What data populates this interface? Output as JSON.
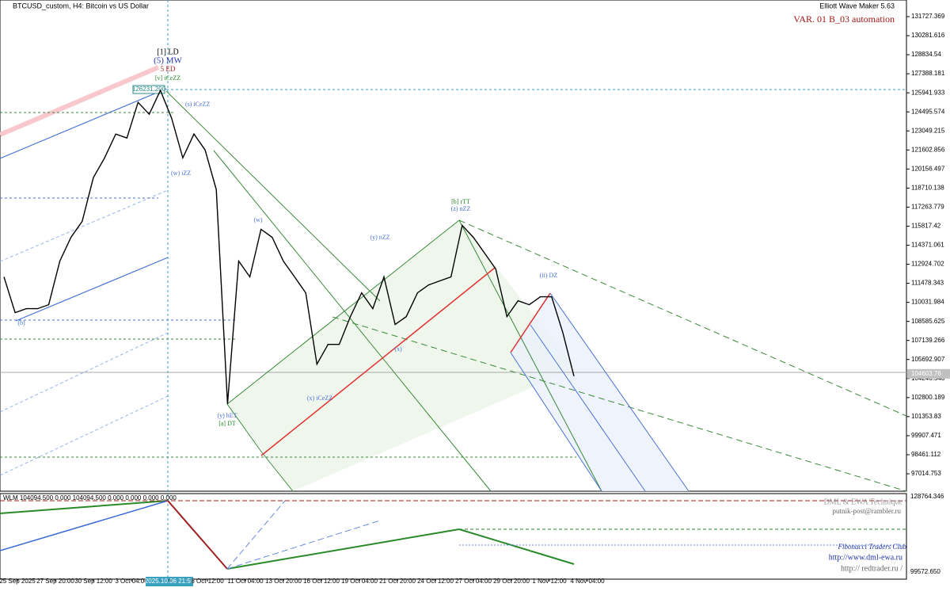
{
  "header": {
    "symbol": "BTCUSD_custom, H4:  Bitcoin vs US Dollar",
    "tool": "Elliott Wave Maker 5.63",
    "variant": "VAR. 01 B_03 automation"
  },
  "price_axis": {
    "ticks": [
      131727.369,
      130281.616,
      128834.54,
      127388.181,
      125941.933,
      124495.574,
      123049.215,
      121602.856,
      120156.497,
      118710.138,
      117263.779,
      115817.42,
      114371.061,
      112924.702,
      111478.343,
      110031.984,
      108585.625,
      107139.266,
      105692.907,
      104246.548,
      102800.189,
      101353.83,
      99907.471,
      98461.112,
      97014.753
    ],
    "current": 104603.76
  },
  "price": {
    "values": [
      111962,
      109250,
      109551,
      109551,
      109853,
      113167,
      114975,
      116181,
      119496,
      121002,
      122811,
      122509,
      125221,
      124317,
      126125,
      124016,
      121002,
      122811,
      121605,
      118592,
      102319,
      113167,
      111962,
      115578,
      114975,
      113167,
      111962,
      110757,
      105332,
      106839,
      106839,
      108948,
      110757,
      109551,
      111962,
      108346,
      108948,
      110757,
      111359,
      111661,
      111962,
      115880,
      114975,
      113770,
      112565,
      108948,
      110154,
      109853,
      110455,
      110455,
      107743,
      104428
    ]
  },
  "time_axis": [
    "25 Sep 2025",
    "27 Sep 20:00",
    "30 Sep 12:00",
    "3 Oct 04:00",
    "2025.10.06 21:58",
    "8 Oct 12:00",
    "11 Oct 04:00",
    "13 Oct 20:00",
    "16 Oct 12:00",
    "19 Oct 04:00",
    "21 Oct 20:00",
    "24 Oct 12:00",
    "27 Oct 04:00",
    "29 Oct 20:00",
    "1 Nov 12:00",
    "4 Nov 04:00"
  ],
  "annotations": {
    "ld": "[1] LD",
    "mw": "(5) MW",
    "ed": "5 ED",
    "v": "[v] iCeZZ",
    "peak": "126231.200",
    "s": "(s) iCeZZ",
    "w1": "(w) iZZ",
    "w2": "(w)",
    "y": "(y) nZZ",
    "b": "[b] rTT",
    "z": "(z) nZZ",
    "ii": "(ii) DZ",
    "x": "(x) iCeZZ",
    "x2": "(x)",
    "yh": "(y) hET",
    "a": "[a] DT",
    "bb": "(b)"
  },
  "indicator": {
    "label": "WLM 104094.500 0.000 104094.500 0.000 0.000 0.000 0.000",
    "top": "128764.346",
    "bottom": "99572.650"
  },
  "credits": {
    "fib": "Fibonacci    Traders    Club",
    "dml": "DML & EWA Technique",
    "mail": "putnik-post@rambler.ru",
    "site1": "http://www.dml-ewa.ru",
    "site2": "http:// redtrader.ru /"
  }
}
